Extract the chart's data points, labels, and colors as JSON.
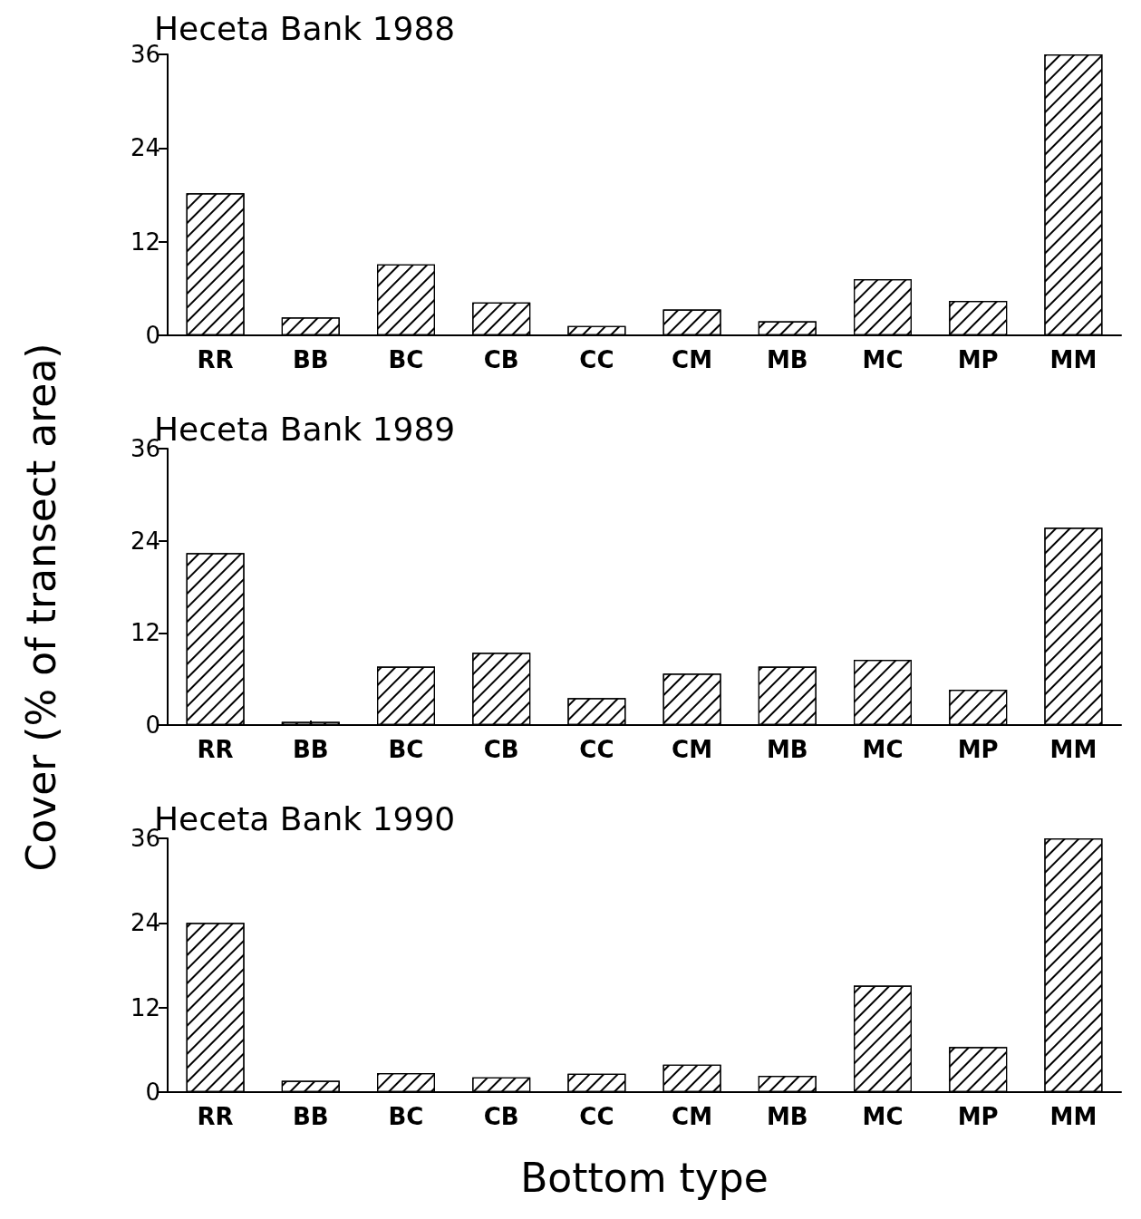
{
  "chart_data": [
    {
      "type": "bar",
      "title": "Heceta Bank 1988",
      "categories": [
        "RR",
        "BB",
        "BC",
        "CB",
        "CC",
        "CM",
        "MB",
        "MC",
        "MP",
        "MM"
      ],
      "values": [
        18.2,
        2.3,
        9.1,
        4.2,
        1.2,
        3.3,
        1.8,
        7.2,
        4.4,
        36
      ],
      "color": "#ffffff",
      "ylim": [
        0,
        36
      ],
      "yticks": [
        0,
        12,
        24,
        36
      ]
    },
    {
      "type": "bar",
      "title": "Heceta Bank 1989",
      "ylabel": "Cover (% of transect area)",
      "categories": [
        "RR",
        "BB",
        "BC",
        "CB",
        "CC",
        "CM",
        "MB",
        "MC",
        "MP",
        "MM"
      ],
      "values": [
        22.4,
        0.4,
        7.6,
        9.4,
        3.5,
        6.7,
        7.6,
        8.5,
        4.6,
        25.7
      ],
      "color": "#ffffff",
      "ylim": [
        0,
        36
      ],
      "yticks": [
        0,
        12,
        24,
        36
      ]
    },
    {
      "type": "bar",
      "title": "Heceta Bank 1990",
      "xlabel": "Bottom type",
      "categories": [
        "RR",
        "BB",
        "BC",
        "CB",
        "CC",
        "CM",
        "MB",
        "MC",
        "MP",
        "MM"
      ],
      "values": [
        24.0,
        1.6,
        2.7,
        2.1,
        2.6,
        3.9,
        2.3,
        15.1,
        6.4,
        36
      ],
      "color": "#ffffff",
      "ylim": [
        0,
        36
      ],
      "yticks": [
        0,
        12,
        24,
        36
      ]
    }
  ]
}
